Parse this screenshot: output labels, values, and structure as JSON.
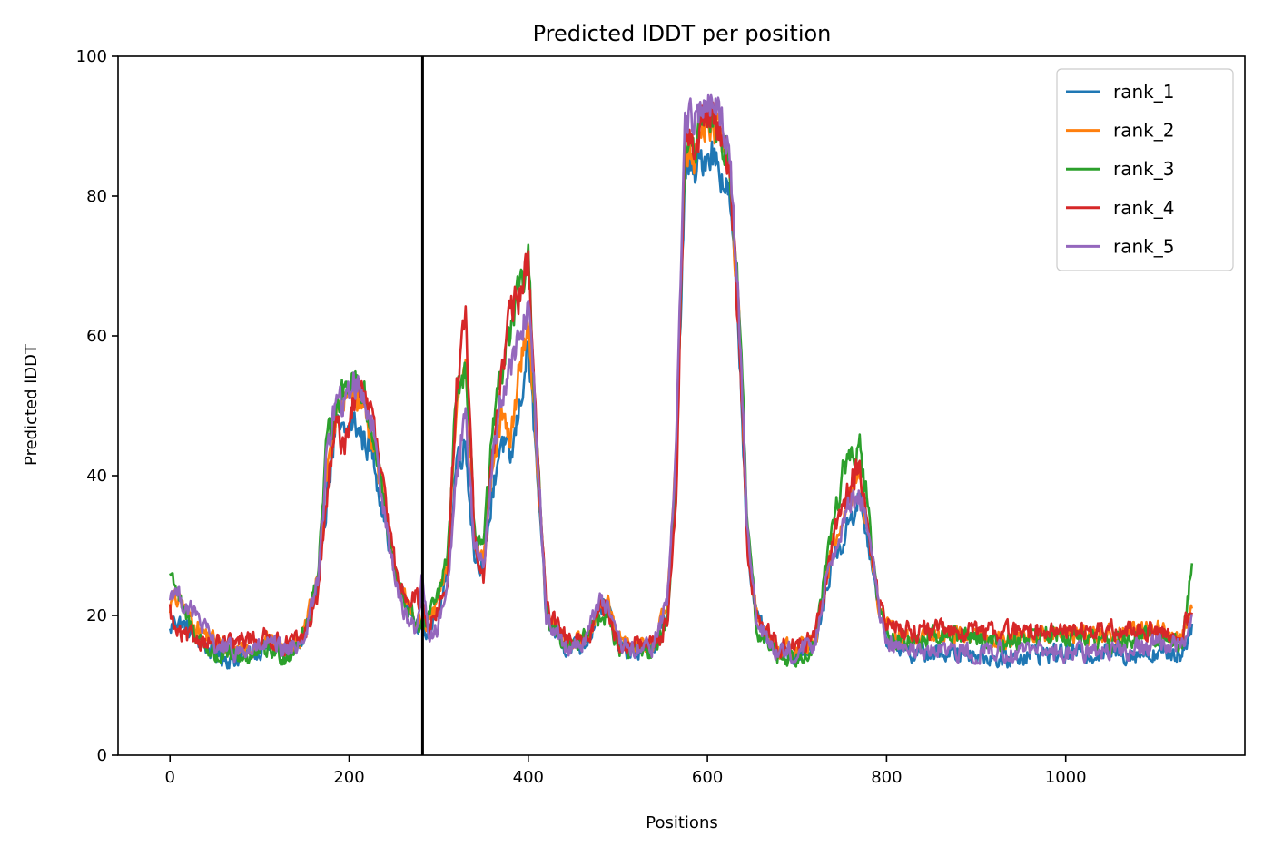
{
  "chart_data": {
    "type": "line",
    "title": "Predicted lDDT per position",
    "xlabel": "Positions",
    "ylabel": "Predicted lDDT",
    "xlim": [
      -58,
      1200
    ],
    "ylim": [
      0,
      100
    ],
    "xticks": [
      0,
      200,
      400,
      600,
      800,
      1000
    ],
    "yticks": [
      0,
      20,
      40,
      60,
      80,
      100
    ],
    "grid": false,
    "legend_position": "top-right",
    "vline_x": 282,
    "series": [
      {
        "name": "rank_1",
        "color": "#1f77b4",
        "offset": -0.4,
        "amp": 1.0,
        "x": [
          0,
          5,
          15,
          30,
          50,
          70,
          90,
          110,
          130,
          150,
          165,
          175,
          185,
          195,
          205,
          215,
          225,
          235,
          245,
          255,
          265,
          275,
          282,
          290,
          300,
          310,
          320,
          330,
          340,
          350,
          360,
          370,
          380,
          390,
          400,
          410,
          420,
          440,
          460,
          470,
          480,
          490,
          500,
          520,
          540,
          555,
          565,
          575,
          585,
          595,
          605,
          615,
          625,
          635,
          645,
          655,
          665,
          680,
          700,
          720,
          730,
          740,
          750,
          760,
          770,
          780,
          790,
          800,
          830,
          860,
          900,
          930,
          960,
          1000,
          1050,
          1100,
          1130,
          1141
        ],
        "y": [
          18,
          20,
          19,
          17,
          15,
          14,
          15,
          16,
          15,
          17,
          24,
          38,
          47,
          46,
          48,
          46,
          44,
          38,
          30,
          25,
          22,
          19,
          18,
          19,
          21,
          26,
          43,
          45,
          29,
          27,
          38,
          46,
          42,
          50,
          59,
          40,
          20,
          16,
          16,
          18,
          22,
          21,
          16,
          15,
          16,
          20,
          40,
          85,
          83,
          86,
          87,
          84,
          80,
          60,
          30,
          20,
          17,
          15,
          15,
          16,
          22,
          29,
          30,
          35,
          37,
          30,
          22,
          17,
          15,
          15,
          15,
          14,
          15,
          15,
          15,
          15,
          15,
          19
        ]
      },
      {
        "name": "rank_2",
        "color": "#ff7f0e",
        "offset": 0.3,
        "amp": 1.0,
        "x": [
          0,
          5,
          15,
          30,
          50,
          70,
          90,
          110,
          130,
          150,
          165,
          175,
          185,
          195,
          205,
          215,
          225,
          235,
          245,
          255,
          265,
          275,
          282,
          290,
          300,
          310,
          320,
          330,
          340,
          350,
          360,
          370,
          380,
          390,
          400,
          410,
          420,
          440,
          460,
          470,
          480,
          490,
          500,
          520,
          540,
          555,
          565,
          575,
          585,
          595,
          605,
          615,
          625,
          635,
          645,
          655,
          665,
          680,
          700,
          720,
          730,
          740,
          750,
          760,
          770,
          780,
          790,
          800,
          830,
          860,
          900,
          930,
          960,
          1000,
          1050,
          1100,
          1130,
          1141
        ],
        "y": [
          21,
          22,
          21,
          18,
          16,
          15,
          15,
          16,
          15,
          17,
          25,
          40,
          48,
          50,
          52,
          50,
          46,
          39,
          30,
          24,
          21,
          19,
          18,
          19,
          22,
          27,
          50,
          58,
          30,
          28,
          40,
          48,
          44,
          55,
          62,
          42,
          20,
          16,
          16,
          18,
          22,
          21,
          16,
          15,
          16,
          21,
          42,
          88,
          85,
          89,
          90,
          88,
          84,
          62,
          30,
          20,
          17,
          15,
          15,
          16,
          23,
          30,
          32,
          37,
          40,
          32,
          22,
          18,
          16,
          17,
          17,
          16,
          17,
          17,
          17,
          18,
          16,
          21
        ]
      },
      {
        "name": "rank_3",
        "color": "#2ca02c",
        "offset": 0.1,
        "amp": 1.0,
        "x": [
          0,
          5,
          15,
          30,
          50,
          70,
          90,
          110,
          130,
          150,
          165,
          175,
          185,
          195,
          205,
          215,
          225,
          235,
          245,
          255,
          265,
          275,
          282,
          290,
          300,
          310,
          320,
          330,
          340,
          350,
          360,
          370,
          380,
          390,
          400,
          410,
          420,
          440,
          460,
          470,
          480,
          490,
          500,
          520,
          540,
          555,
          565,
          575,
          585,
          595,
          605,
          615,
          625,
          635,
          645,
          655,
          665,
          680,
          700,
          720,
          730,
          740,
          750,
          760,
          770,
          780,
          790,
          800,
          830,
          860,
          900,
          930,
          960,
          1000,
          1050,
          1100,
          1130,
          1141
        ],
        "y": [
          26,
          25,
          20,
          17,
          14,
          14,
          14,
          15,
          14,
          17,
          26,
          44,
          50,
          52,
          55,
          52,
          47,
          40,
          30,
          24,
          21,
          19,
          18,
          20,
          23,
          28,
          52,
          55,
          32,
          30,
          45,
          55,
          60,
          66,
          70,
          44,
          20,
          16,
          16,
          18,
          20,
          20,
          15,
          15,
          15,
          19,
          40,
          88,
          86,
          90,
          91,
          88,
          84,
          65,
          32,
          18,
          16,
          14,
          14,
          16,
          25,
          33,
          40,
          42,
          44,
          34,
          22,
          17,
          16,
          17,
          17,
          16,
          17,
          17,
          16,
          17,
          16,
          27
        ]
      },
      {
        "name": "rank_4",
        "color": "#d62728",
        "offset": 0.8,
        "amp": 1.0,
        "x": [
          0,
          5,
          15,
          30,
          50,
          70,
          90,
          110,
          130,
          150,
          165,
          175,
          185,
          195,
          205,
          215,
          225,
          235,
          245,
          255,
          265,
          275,
          282,
          290,
          300,
          310,
          320,
          330,
          340,
          350,
          360,
          370,
          380,
          390,
          400,
          410,
          420,
          440,
          460,
          470,
          480,
          490,
          500,
          520,
          540,
          555,
          565,
          575,
          585,
          595,
          605,
          615,
          625,
          635,
          645,
          655,
          665,
          680,
          700,
          720,
          730,
          740,
          750,
          760,
          770,
          780,
          790,
          800,
          830,
          860,
          900,
          930,
          960,
          1000,
          1050,
          1100,
          1130,
          1141
        ],
        "y": [
          20,
          17,
          16,
          16,
          15,
          15,
          16,
          16,
          15,
          16,
          22,
          36,
          46,
          44,
          50,
          52,
          48,
          40,
          31,
          24,
          22,
          22,
          20,
          18,
          20,
          24,
          52,
          62,
          30,
          25,
          42,
          54,
          62,
          65,
          70,
          44,
          20,
          16,
          15,
          17,
          21,
          20,
          15,
          15,
          15,
          18,
          36,
          88,
          86,
          90,
          91,
          88,
          84,
          60,
          28,
          19,
          17,
          15,
          15,
          16,
          22,
          30,
          35,
          38,
          41,
          30,
          22,
          18,
          17,
          17,
          17,
          17,
          17,
          17,
          17,
          17,
          16,
          21
        ]
      },
      {
        "name": "rank_5",
        "color": "#9467bd",
        "offset": -0.2,
        "amp": 1.0,
        "x": [
          0,
          5,
          15,
          30,
          50,
          70,
          90,
          110,
          130,
          150,
          165,
          175,
          185,
          195,
          205,
          215,
          225,
          235,
          245,
          255,
          265,
          275,
          282,
          290,
          300,
          310,
          320,
          330,
          340,
          350,
          360,
          370,
          380,
          390,
          400,
          410,
          420,
          440,
          460,
          470,
          480,
          490,
          500,
          520,
          540,
          555,
          565,
          575,
          585,
          595,
          605,
          615,
          625,
          635,
          645,
          655,
          665,
          680,
          700,
          720,
          730,
          740,
          750,
          760,
          770,
          780,
          790,
          800,
          830,
          860,
          900,
          930,
          960,
          1000,
          1050,
          1100,
          1130,
          1141
        ],
        "y": [
          23,
          24,
          22,
          20,
          16,
          15,
          15,
          16,
          15,
          17,
          25,
          43,
          51,
          50,
          54,
          52,
          48,
          40,
          30,
          23,
          20,
          18,
          26,
          16,
          19,
          25,
          40,
          50,
          30,
          27,
          42,
          52,
          56,
          60,
          65,
          45,
          20,
          16,
          16,
          19,
          23,
          21,
          16,
          15,
          16,
          22,
          44,
          92,
          90,
          93,
          93,
          91,
          87,
          65,
          32,
          19,
          17,
          15,
          15,
          16,
          24,
          29,
          33,
          36,
          38,
          33,
          22,
          16,
          15,
          15,
          15,
          15,
          15,
          15,
          15,
          16,
          16,
          20
        ]
      }
    ]
  }
}
